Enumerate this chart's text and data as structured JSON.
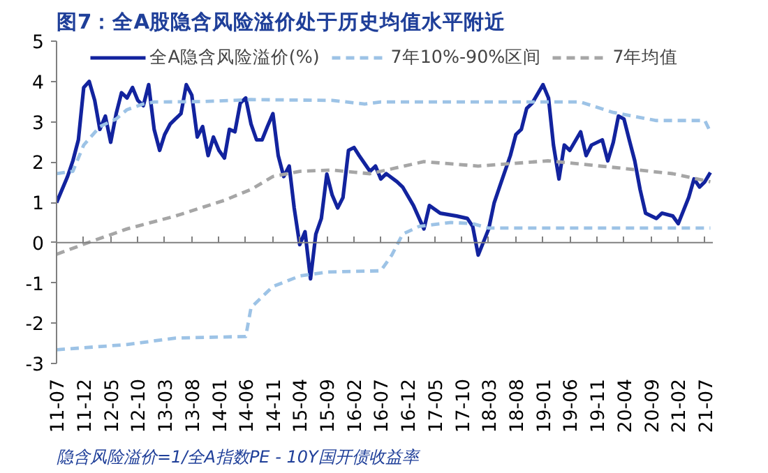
{
  "chart_data": {
    "type": "line",
    "title": "图7：全A股隐含风险溢价处于历史均值水平附近",
    "annotations": [
      "隐含风险溢价=1/全A指数PE - 10Y国开债收益率"
    ],
    "legend": "top",
    "grid": false,
    "ref_lines": [
      {
        "axis": "y",
        "value": 0,
        "color": "#808080"
      }
    ],
    "xlim": [
      "2011-07",
      "2021-08-15"
    ],
    "ylim": [
      -3,
      5
    ],
    "yticks": [
      -3,
      -2,
      -1,
      0,
      1,
      2,
      3,
      4,
      5
    ],
    "xticks": [
      {
        "value": "2011-07",
        "label": "11-07"
      },
      {
        "value": "2011-12",
        "label": "11-12"
      },
      {
        "value": "2012-05",
        "label": "12-05"
      },
      {
        "value": "2012-10",
        "label": "12-10"
      },
      {
        "value": "2013-03",
        "label": "13-03"
      },
      {
        "value": "2013-08",
        "label": "13-08"
      },
      {
        "value": "2014-01",
        "label": "14-01"
      },
      {
        "value": "2014-06",
        "label": "14-06"
      },
      {
        "value": "2014-11",
        "label": "14-11"
      },
      {
        "value": "2015-04",
        "label": "15-04"
      },
      {
        "value": "2015-09",
        "label": "15-09"
      },
      {
        "value": "2016-02",
        "label": "16-02"
      },
      {
        "value": "2016-07",
        "label": "16-07"
      },
      {
        "value": "2016-12",
        "label": "16-12"
      },
      {
        "value": "2017-05",
        "label": "17-05"
      },
      {
        "value": "2017-10",
        "label": "17-10"
      },
      {
        "value": "2018-03",
        "label": "18-03"
      },
      {
        "value": "2018-08",
        "label": "18-08"
      },
      {
        "value": "2019-01",
        "label": "19-01"
      },
      {
        "value": "2019-06",
        "label": "19-06"
      },
      {
        "value": "2019-11",
        "label": "19-11"
      },
      {
        "value": "2020-04",
        "label": "20-04"
      },
      {
        "value": "2020-09",
        "label": "20-09"
      },
      {
        "value": "2021-02",
        "label": "21-02"
      },
      {
        "value": "2021-07",
        "label": "21-07"
      }
    ],
    "series": [
      {
        "name": "全A隐含风险溢价(%)",
        "color": "#12239e",
        "line_style": "solid",
        "x": [
          "2011-07",
          "2011-09",
          "2011-10",
          "2011-11",
          "2011-12",
          "2012-01",
          "2012-02",
          "2012-03",
          "2012-04",
          "2012-05",
          "2012-06",
          "2012-07",
          "2012-08",
          "2012-09",
          "2012-10",
          "2012-11",
          "2012-12",
          "2013-01",
          "2013-02",
          "2013-03",
          "2013-04",
          "2013-05",
          "2013-06",
          "2013-07",
          "2013-08",
          "2013-09",
          "2013-10",
          "2013-11",
          "2013-12",
          "2014-01",
          "2014-02",
          "2014-03",
          "2014-04",
          "2014-05",
          "2014-06",
          "2014-07",
          "2014-08",
          "2014-09",
          "2014-10",
          "2014-11",
          "2014-12",
          "2015-01",
          "2015-02",
          "2015-03",
          "2015-04",
          "2015-05",
          "2015-06",
          "2015-07",
          "2015-08",
          "2015-09",
          "2015-10",
          "2015-11",
          "2015-12",
          "2016-01",
          "2016-02",
          "2016-03",
          "2016-05",
          "2016-06",
          "2016-07",
          "2016-08",
          "2016-10",
          "2016-11",
          "2017-01",
          "2017-03",
          "2017-04",
          "2017-06",
          "2017-09",
          "2017-11",
          "2017-12",
          "2018-01",
          "2018-03",
          "2018-04",
          "2018-05",
          "2018-07",
          "2018-08",
          "2018-09",
          "2018-10",
          "2018-11",
          "2019-01",
          "2019-02",
          "2019-03",
          "2019-04",
          "2019-05",
          "2019-06",
          "2019-08",
          "2019-09",
          "2019-10",
          "2019-12",
          "2020-01",
          "2020-02",
          "2020-03",
          "2020-04",
          "2020-05",
          "2020-06",
          "2020-07",
          "2020-08",
          "2020-10",
          "2020-11",
          "2021-01",
          "2021-02",
          "2021-04",
          "2021-05",
          "2021-06",
          "2021-07",
          "2021-08"
        ],
        "values": [
          0.99,
          1.64,
          2.03,
          2.55,
          3.85,
          4.0,
          3.53,
          2.81,
          3.14,
          2.49,
          3.2,
          3.72,
          3.59,
          3.85,
          3.53,
          3.4,
          3.92,
          2.81,
          2.29,
          2.68,
          2.94,
          3.07,
          3.2,
          3.92,
          3.66,
          2.62,
          2.88,
          2.16,
          2.62,
          2.29,
          2.1,
          2.81,
          2.75,
          3.46,
          3.59,
          2.94,
          2.55,
          2.55,
          2.88,
          3.2,
          2.16,
          1.64,
          1.9,
          0.86,
          -0.05,
          0.27,
          -0.9,
          0.21,
          0.6,
          1.7,
          1.18,
          0.86,
          1.12,
          2.29,
          2.36,
          2.16,
          1.77,
          1.9,
          1.58,
          1.71,
          1.51,
          1.38,
          0.92,
          0.34,
          0.92,
          0.73,
          0.66,
          0.6,
          0.4,
          -0.31,
          0.34,
          0.99,
          1.38,
          2.16,
          2.68,
          2.81,
          3.33,
          3.46,
          3.92,
          3.59,
          2.42,
          1.58,
          2.42,
          2.29,
          2.75,
          2.16,
          2.42,
          2.55,
          2.03,
          2.49,
          3.14,
          3.07,
          2.55,
          2.03,
          1.32,
          0.73,
          0.6,
          0.73,
          0.66,
          0.47,
          1.12,
          1.58,
          1.38,
          1.51,
          1.74
        ]
      },
      {
        "name": "7年10%-90%区间",
        "color": "#9dc3e6",
        "line_style": "dashed",
        "x": [
          "2011-07",
          "2011-10",
          "2011-12",
          "2012-03",
          "2012-06",
          "2012-08",
          "2012-11",
          "2013-01",
          "2013-10",
          "2014-07",
          "2015-10",
          "2016-04",
          "2016-07",
          "2019-08",
          "2020-02",
          "2020-10",
          "2021-07",
          "2021-08"
        ],
        "values": [
          1.71,
          1.77,
          2.42,
          2.88,
          3.07,
          3.3,
          3.44,
          3.49,
          3.5,
          3.55,
          3.53,
          3.44,
          3.49,
          3.49,
          3.23,
          3.03,
          3.03,
          2.75
        ]
      },
      {
        "color": "#9dc3e6",
        "line_style": "dashed",
        "x": [
          "2011-07",
          "2012-08",
          "2013-05",
          "2014-06",
          "2014-07",
          "2014-11",
          "2015-04",
          "2015-09",
          "2016-07",
          "2016-09",
          "2016-11",
          "2017-02",
          "2017-08",
          "2017-12",
          "2018-03",
          "2021-08"
        ],
        "values": [
          -2.66,
          -2.53,
          -2.37,
          -2.33,
          -1.61,
          -1.09,
          -0.83,
          -0.73,
          -0.7,
          -0.31,
          0.21,
          0.4,
          0.5,
          0.47,
          0.36,
          0.36
        ]
      },
      {
        "name": "7年均值",
        "color": "#a6a6a6",
        "line_style": "dashed",
        "x": [
          "2011-07",
          "2012-01",
          "2012-08",
          "2013-05",
          "2014-02",
          "2014-07",
          "2014-11",
          "2015-04",
          "2015-10",
          "2016-05",
          "2016-07",
          "2017-03",
          "2018-01",
          "2019-02",
          "2020-04",
          "2021-01",
          "2021-08"
        ],
        "values": [
          -0.29,
          0.01,
          0.34,
          0.66,
          1.05,
          1.32,
          1.64,
          1.77,
          1.8,
          1.71,
          1.77,
          2.01,
          1.9,
          2.03,
          1.84,
          1.71,
          1.51
        ]
      }
    ]
  }
}
